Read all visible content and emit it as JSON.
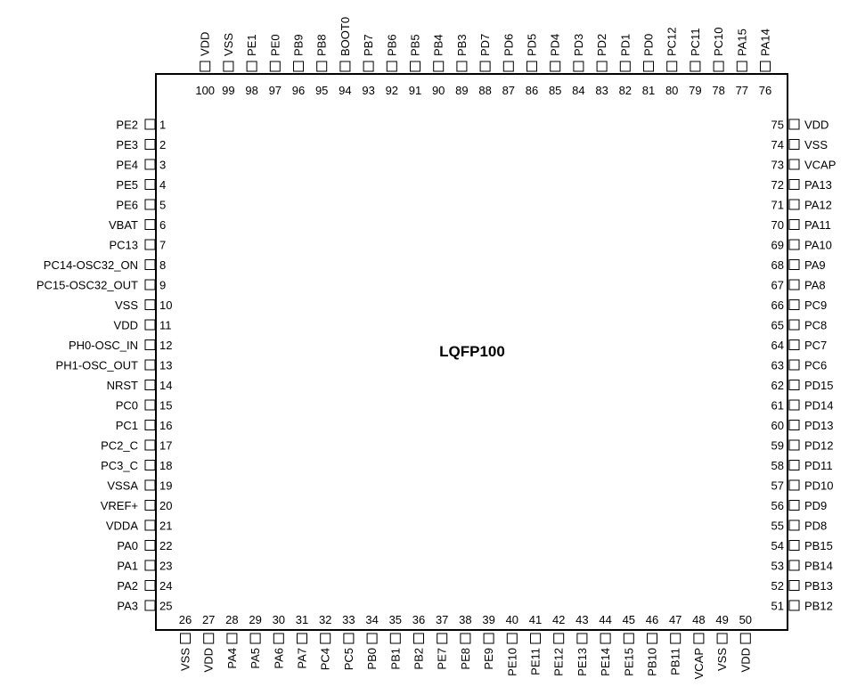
{
  "chip": {
    "package": "LQFP100"
  },
  "left_pins": [
    {
      "num": "1",
      "name": "PE2"
    },
    {
      "num": "2",
      "name": "PE3"
    },
    {
      "num": "3",
      "name": "PE4"
    },
    {
      "num": "4",
      "name": "PE5"
    },
    {
      "num": "5",
      "name": "PE6"
    },
    {
      "num": "6",
      "name": "VBAT"
    },
    {
      "num": "7",
      "name": "PC13"
    },
    {
      "num": "8",
      "name": "PC14-OSC32_ON"
    },
    {
      "num": "9",
      "name": "PC15-OSC32_OUT"
    },
    {
      "num": "10",
      "name": "VSS"
    },
    {
      "num": "11",
      "name": "VDD"
    },
    {
      "num": "12",
      "name": "PH0-OSC_IN"
    },
    {
      "num": "13",
      "name": "PH1-OSC_OUT"
    },
    {
      "num": "14",
      "name": "NRST"
    },
    {
      "num": "15",
      "name": "PC0"
    },
    {
      "num": "16",
      "name": "PC1"
    },
    {
      "num": "17",
      "name": "PC2_C"
    },
    {
      "num": "18",
      "name": "PC3_C"
    },
    {
      "num": "19",
      "name": "VSSA"
    },
    {
      "num": "20",
      "name": "VREF+"
    },
    {
      "num": "21",
      "name": "VDDA"
    },
    {
      "num": "22",
      "name": "PA0"
    },
    {
      "num": "23",
      "name": "PA1"
    },
    {
      "num": "24",
      "name": "PA2"
    },
    {
      "num": "25",
      "name": "PA3"
    }
  ],
  "bottom_pins": [
    {
      "num": "26",
      "name": "VSS"
    },
    {
      "num": "27",
      "name": "VDD"
    },
    {
      "num": "28",
      "name": "PA4"
    },
    {
      "num": "29",
      "name": "PA5"
    },
    {
      "num": "30",
      "name": "PA6"
    },
    {
      "num": "31",
      "name": "PA7"
    },
    {
      "num": "32",
      "name": "PC4"
    },
    {
      "num": "33",
      "name": "PC5"
    },
    {
      "num": "34",
      "name": "PB0"
    },
    {
      "num": "35",
      "name": "PB1"
    },
    {
      "num": "36",
      "name": "PB2"
    },
    {
      "num": "37",
      "name": "PE7"
    },
    {
      "num": "38",
      "name": "PE8"
    },
    {
      "num": "39",
      "name": "PE9"
    },
    {
      "num": "40",
      "name": "PE10"
    },
    {
      "num": "41",
      "name": "PE11"
    },
    {
      "num": "42",
      "name": "PE12"
    },
    {
      "num": "43",
      "name": "PE13"
    },
    {
      "num": "44",
      "name": "PE14"
    },
    {
      "num": "45",
      "name": "PE15"
    },
    {
      "num": "46",
      "name": "PB10"
    },
    {
      "num": "47",
      "name": "PB11"
    },
    {
      "num": "48",
      "name": "VCAP"
    },
    {
      "num": "49",
      "name": "VSS"
    },
    {
      "num": "50",
      "name": "VDD"
    }
  ],
  "right_pins": [
    {
      "num": "51",
      "name": "PB12"
    },
    {
      "num": "52",
      "name": "PB13"
    },
    {
      "num": "53",
      "name": "PB14"
    },
    {
      "num": "54",
      "name": "PB15"
    },
    {
      "num": "55",
      "name": "PD8"
    },
    {
      "num": "56",
      "name": "PD9"
    },
    {
      "num": "57",
      "name": "PD10"
    },
    {
      "num": "58",
      "name": "PD11"
    },
    {
      "num": "59",
      "name": "PD12"
    },
    {
      "num": "60",
      "name": "PD13"
    },
    {
      "num": "61",
      "name": "PD14"
    },
    {
      "num": "62",
      "name": "PD15"
    },
    {
      "num": "63",
      "name": "PC6"
    },
    {
      "num": "64",
      "name": "PC7"
    },
    {
      "num": "65",
      "name": "PC8"
    },
    {
      "num": "66",
      "name": "PC9"
    },
    {
      "num": "67",
      "name": "PA8"
    },
    {
      "num": "68",
      "name": "PA9"
    },
    {
      "num": "69",
      "name": "PA10"
    },
    {
      "num": "70",
      "name": "PA11"
    },
    {
      "num": "71",
      "name": "PA12"
    },
    {
      "num": "72",
      "name": "PA13"
    },
    {
      "num": "73",
      "name": "VCAP"
    },
    {
      "num": "74",
      "name": "VSS"
    },
    {
      "num": "75",
      "name": "VDD"
    }
  ],
  "top_pins": [
    {
      "num": "76",
      "name": "PA14"
    },
    {
      "num": "77",
      "name": "PA15"
    },
    {
      "num": "78",
      "name": "PC10"
    },
    {
      "num": "79",
      "name": "PC11"
    },
    {
      "num": "80",
      "name": "PC12"
    },
    {
      "num": "81",
      "name": "PD0"
    },
    {
      "num": "82",
      "name": "PD1"
    },
    {
      "num": "83",
      "name": "PD2"
    },
    {
      "num": "84",
      "name": "PD3"
    },
    {
      "num": "85",
      "name": "PD4"
    },
    {
      "num": "86",
      "name": "PD5"
    },
    {
      "num": "87",
      "name": "PD6"
    },
    {
      "num": "88",
      "name": "PD7"
    },
    {
      "num": "89",
      "name": "PB3"
    },
    {
      "num": "90",
      "name": "PB4"
    },
    {
      "num": "91",
      "name": "PB5"
    },
    {
      "num": "92",
      "name": "PB6"
    },
    {
      "num": "93",
      "name": "PB7"
    },
    {
      "num": "94",
      "name": "BOOT0"
    },
    {
      "num": "95",
      "name": "PB8"
    },
    {
      "num": "96",
      "name": "PB9"
    },
    {
      "num": "97",
      "name": "PE0"
    },
    {
      "num": "98",
      "name": "PE1"
    },
    {
      "num": "99",
      "name": "VSS"
    },
    {
      "num": "100",
      "name": "VDD"
    }
  ]
}
